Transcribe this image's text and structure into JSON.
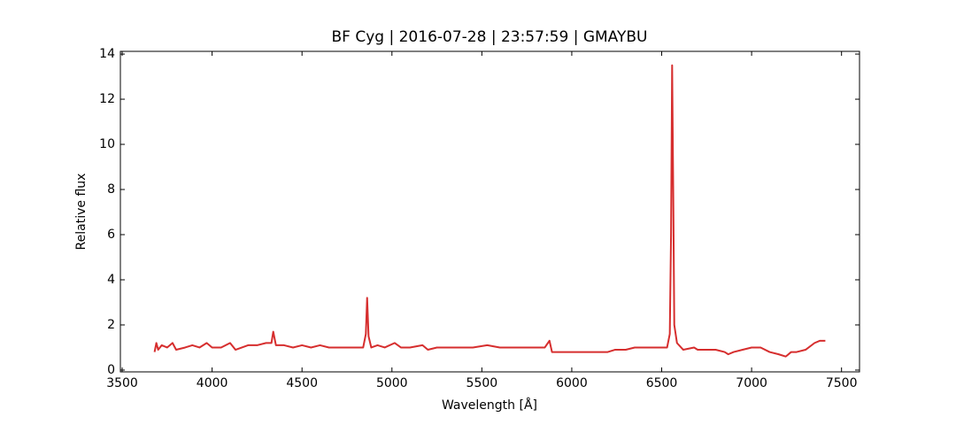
{
  "chart_data": {
    "type": "line",
    "title": "BF Cyg | 2016-07-28 | 23:57:59 | GMAYBU",
    "x_label": "Wavelength [Å]",
    "y_label": "Relative flux",
    "xlim": [
      3490,
      7600
    ],
    "ylim": [
      -0.08,
      14.12
    ],
    "xticks": [
      3500,
      4000,
      4500,
      5000,
      5500,
      6000,
      6500,
      7000,
      7500
    ],
    "yticks": [
      0,
      2,
      4,
      6,
      8,
      10,
      12,
      14
    ],
    "x": [
      3680,
      3690,
      3700,
      3720,
      3750,
      3780,
      3800,
      3850,
      3890,
      3930,
      3970,
      4000,
      4050,
      4100,
      4130,
      4200,
      4250,
      4300,
      4330,
      4340,
      4355,
      4400,
      4450,
      4500,
      4550,
      4600,
      4650,
      4700,
      4750,
      4800,
      4840,
      4855,
      4862,
      4870,
      4885,
      4920,
      4960,
      5015,
      5050,
      5100,
      5170,
      5200,
      5250,
      5300,
      5350,
      5400,
      5450,
      5530,
      5600,
      5650,
      5700,
      5750,
      5800,
      5850,
      5876,
      5890,
      5950,
      6000,
      6050,
      6100,
      6150,
      6200,
      6240,
      6280,
      6300,
      6350,
      6400,
      6450,
      6500,
      6530,
      6545,
      6552,
      6558,
      6564,
      6570,
      6585,
      6620,
      6680,
      6700,
      6750,
      6800,
      6850,
      6870,
      6900,
      6950,
      7000,
      7050,
      7100,
      7150,
      7190,
      7220,
      7250,
      7300,
      7350,
      7380,
      7410
    ],
    "series": [
      {
        "color": "#d62e2e",
        "values": [
          0.8,
          1.2,
          0.9,
          1.1,
          1.0,
          1.2,
          0.9,
          1.0,
          1.1,
          1.0,
          1.2,
          1.0,
          1.0,
          1.2,
          0.9,
          1.1,
          1.1,
          1.2,
          1.2,
          1.7,
          1.1,
          1.1,
          1.0,
          1.1,
          1.0,
          1.1,
          1.0,
          1.0,
          1.0,
          1.0,
          1.0,
          1.6,
          3.2,
          1.5,
          1.0,
          1.1,
          1.0,
          1.2,
          1.0,
          1.0,
          1.1,
          0.9,
          1.0,
          1.0,
          1.0,
          1.0,
          1.0,
          1.1,
          1.0,
          1.0,
          1.0,
          1.0,
          1.0,
          1.0,
          1.3,
          0.8,
          0.8,
          0.8,
          0.8,
          0.8,
          0.8,
          0.8,
          0.9,
          0.9,
          0.9,
          1.0,
          1.0,
          1.0,
          1.0,
          1.0,
          1.6,
          6.0,
          13.5,
          8.0,
          2.0,
          1.2,
          0.9,
          1.0,
          0.9,
          0.9,
          0.9,
          0.8,
          0.7,
          0.8,
          0.9,
          1.0,
          1.0,
          0.8,
          0.7,
          0.6,
          0.8,
          0.8,
          0.9,
          1.2,
          1.3,
          1.3
        ]
      }
    ]
  }
}
